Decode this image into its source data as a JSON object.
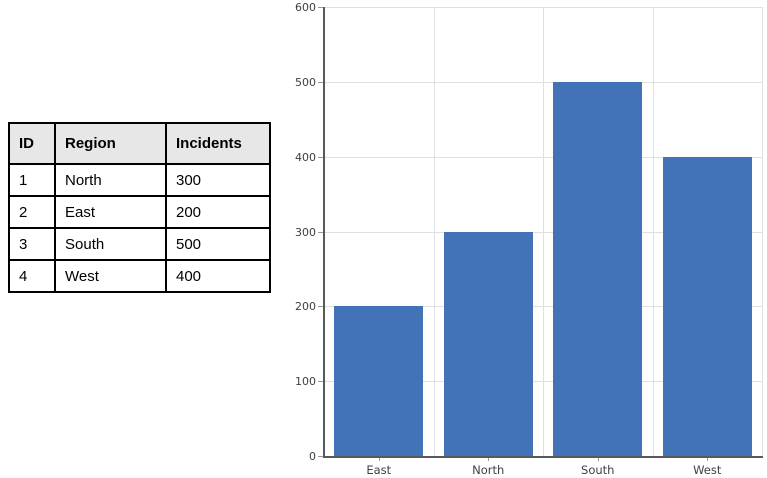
{
  "table": {
    "headers": [
      "ID",
      "Region",
      "Incidents"
    ],
    "rows": [
      {
        "id": "1",
        "region": "North",
        "incidents": "300"
      },
      {
        "id": "2",
        "region": "East",
        "incidents": "200"
      },
      {
        "id": "3",
        "region": "South",
        "incidents": "500"
      },
      {
        "id": "4",
        "region": "West",
        "incidents": "400"
      }
    ],
    "header_bg": "#E7E7E7"
  },
  "chart_data": {
    "type": "bar",
    "categories": [
      "East",
      "North",
      "South",
      "West"
    ],
    "values": [
      200,
      300,
      500,
      400
    ],
    "title": "",
    "xlabel": "",
    "ylabel": "",
    "ylim": [
      0,
      600
    ],
    "yticks": [
      0,
      100,
      200,
      300,
      400,
      500,
      600
    ],
    "grid": true,
    "legend": false,
    "bar_color": "#4273B6",
    "axis_color": "#595959",
    "gridline_color": "#E0E0E0",
    "tick_color": "#999999",
    "label_color": "#404040"
  }
}
